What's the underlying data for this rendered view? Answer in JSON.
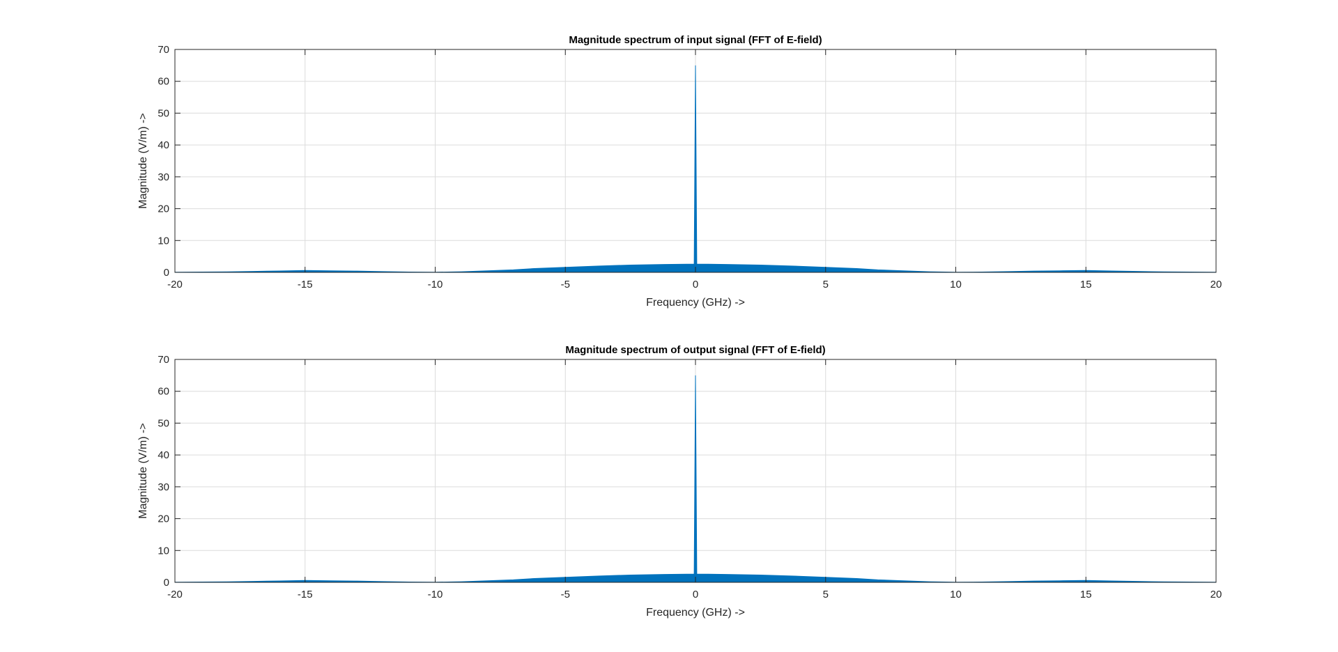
{
  "chart_data": [
    {
      "type": "line",
      "title": "Magnitude spectrum of input signal (FFT of E-field)",
      "xlabel": "Frequency (GHz) ->",
      "ylabel": "Magnitude (V/m) ->",
      "xlim": [
        -20,
        20
      ],
      "ylim": [
        0,
        70
      ],
      "xticks": [
        -20,
        -15,
        -10,
        -5,
        0,
        5,
        10,
        15,
        20
      ],
      "yticks": [
        0,
        10,
        20,
        30,
        40,
        50,
        60,
        70
      ],
      "grid": true,
      "line_color": "#0072BD",
      "series": [
        {
          "x": [
            -20,
            -18,
            -17,
            -16,
            -15,
            -14,
            -13,
            -12,
            -11,
            -10,
            -9,
            -8,
            -7,
            -6.2,
            -5,
            -3.7,
            -2.5,
            -1.2,
            -0.05,
            0,
            0.05,
            1.2,
            2.5,
            3.7,
            5,
            6.2,
            7,
            8,
            9,
            10,
            11,
            12,
            13,
            14,
            15,
            16,
            17,
            18,
            20
          ],
          "y": [
            0.05,
            0.15,
            0.3,
            0.45,
            0.6,
            0.5,
            0.4,
            0.25,
            0.1,
            0.05,
            0.2,
            0.5,
            0.8,
            1.2,
            1.6,
            2.0,
            2.3,
            2.5,
            2.6,
            65,
            2.6,
            2.5,
            2.3,
            2.0,
            1.6,
            1.2,
            0.8,
            0.5,
            0.2,
            0.05,
            0.1,
            0.25,
            0.4,
            0.5,
            0.6,
            0.45,
            0.3,
            0.15,
            0.05
          ]
        }
      ]
    },
    {
      "type": "line",
      "title": "Magnitude spectrum of output signal (FFT of E-field)",
      "xlabel": "Frequency (GHz) ->",
      "ylabel": "Magnitude (V/m) ->",
      "xlim": [
        -20,
        20
      ],
      "ylim": [
        0,
        70
      ],
      "xticks": [
        -20,
        -15,
        -10,
        -5,
        0,
        5,
        10,
        15,
        20
      ],
      "yticks": [
        0,
        10,
        20,
        30,
        40,
        50,
        60,
        70
      ],
      "grid": true,
      "line_color": "#0072BD",
      "series": [
        {
          "x": [
            -20,
            -18,
            -17,
            -16,
            -15,
            -14,
            -13,
            -12,
            -11,
            -10,
            -9,
            -8,
            -7,
            -6.2,
            -5,
            -3.7,
            -2.5,
            -1.2,
            -0.05,
            0,
            0.05,
            1.2,
            2.5,
            3.7,
            5,
            6.2,
            7,
            8,
            9,
            10,
            11,
            12,
            13,
            14,
            15,
            16,
            17,
            18,
            20
          ],
          "y": [
            0.05,
            0.15,
            0.3,
            0.45,
            0.6,
            0.5,
            0.4,
            0.25,
            0.1,
            0.05,
            0.2,
            0.5,
            0.8,
            1.2,
            1.6,
            2.0,
            2.3,
            2.5,
            2.6,
            65,
            2.6,
            2.5,
            2.3,
            2.0,
            1.6,
            1.2,
            0.8,
            0.5,
            0.2,
            0.05,
            0.1,
            0.25,
            0.4,
            0.5,
            0.6,
            0.45,
            0.3,
            0.15,
            0.05
          ]
        }
      ]
    }
  ]
}
